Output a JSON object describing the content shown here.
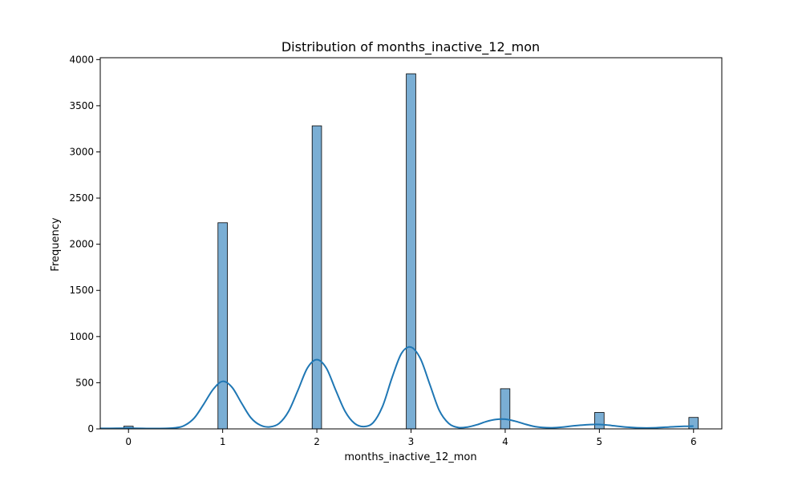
{
  "chart_data": {
    "type": "bar",
    "title": "Distribution of months_inactive_12_mon",
    "xlabel": "months_inactive_12_mon",
    "ylabel": "Frequency",
    "xlim": [
      -0.3,
      6.3
    ],
    "ylim": [
      0,
      4020
    ],
    "x_ticks": [
      0,
      1,
      2,
      3,
      4,
      5,
      6
    ],
    "x_tick_labels": [
      "0",
      "1",
      "2",
      "3",
      "4",
      "5",
      "6"
    ],
    "y_ticks": [
      0,
      500,
      1000,
      1500,
      2000,
      2500,
      3000,
      3500,
      4000
    ],
    "y_tick_labels": [
      "0",
      "500",
      "1000",
      "1500",
      "2000",
      "2500",
      "3000",
      "3500",
      "4000"
    ],
    "bin_width": 0.1,
    "categories": [
      0,
      1,
      2,
      3,
      4,
      5,
      6
    ],
    "values": [
      29,
      2233,
      3282,
      3846,
      435,
      178,
      124
    ],
    "bar_color": "#7aaed4",
    "bar_edge_color": "#000000",
    "kde": {
      "color": "#1f77b4",
      "x": [
        -0.3,
        0.0,
        0.3,
        0.5,
        0.6,
        0.7,
        0.8,
        0.9,
        1.0,
        1.1,
        1.2,
        1.3,
        1.4,
        1.5,
        1.6,
        1.7,
        1.8,
        1.9,
        2.0,
        2.1,
        2.2,
        2.3,
        2.4,
        2.5,
        2.6,
        2.7,
        2.8,
        2.9,
        3.0,
        3.1,
        3.2,
        3.3,
        3.4,
        3.5,
        3.6,
        3.7,
        3.8,
        3.9,
        4.0,
        4.1,
        4.2,
        4.3,
        4.4,
        4.5,
        4.6,
        4.7,
        4.8,
        4.9,
        5.0,
        5.1,
        5.2,
        5.3,
        5.4,
        5.5,
        5.6,
        5.7,
        5.8,
        5.9,
        6.0
      ],
      "y": [
        5,
        8,
        4,
        12,
        40,
        120,
        270,
        430,
        515,
        450,
        280,
        120,
        40,
        22,
        60,
        190,
        420,
        660,
        750,
        660,
        420,
        190,
        60,
        25,
        70,
        250,
        560,
        820,
        885,
        760,
        480,
        200,
        60,
        15,
        20,
        45,
        80,
        102,
        105,
        85,
        55,
        28,
        15,
        12,
        18,
        30,
        40,
        47,
        48,
        40,
        28,
        18,
        12,
        10,
        12,
        18,
        24,
        28,
        30
      ]
    }
  }
}
